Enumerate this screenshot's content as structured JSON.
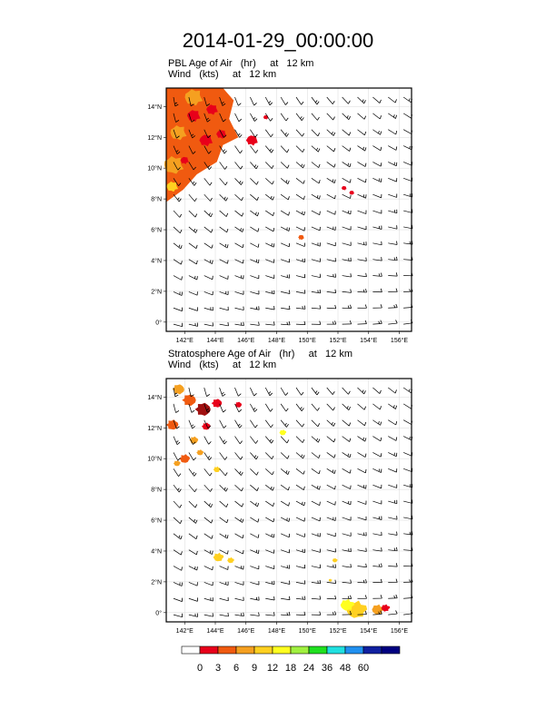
{
  "title": "2014-01-29_00:00:00",
  "panels": [
    {
      "line1": "PBL Age of Air   (hr)     at   12 km",
      "line2": "Wind   (kts)     at   12 km"
    },
    {
      "line1": "Stratosphere Age of Air   (hr)     at   12 km",
      "line2": "Wind   (kts)     at   12 km"
    }
  ],
  "axes": {
    "lat_ticks": [
      "0°",
      "2°N",
      "4°N",
      "6°N",
      "8°N",
      "10°N",
      "12°N",
      "14°N"
    ],
    "lon_ticks": [
      "142°E",
      "144°E",
      "146°E",
      "148°E",
      "150°E",
      "152°E",
      "154°E",
      "156°E"
    ],
    "lat_range": [
      -0.6,
      15.2
    ],
    "lon_range": [
      140.8,
      156.8
    ]
  },
  "colorbar": {
    "labels": [
      "0",
      "3",
      "6",
      "9",
      "12",
      "18",
      "24",
      "36",
      "48",
      "60"
    ],
    "colors": [
      "#ffffff",
      "#e8001a",
      "#f05a10",
      "#f5a020",
      "#ffd020",
      "#ffff20",
      "#a0f040",
      "#20e020",
      "#20e0e0",
      "#2090f0",
      "#1020a0",
      "#000080"
    ]
  },
  "colors": {
    "red": "#e8001a",
    "orange_red": "#f05a10",
    "orange": "#f5a020",
    "yellow_orange": "#ffd020",
    "yellow": "#ffff20",
    "dark_red": "#a01010",
    "barb": "#000000"
  }
}
